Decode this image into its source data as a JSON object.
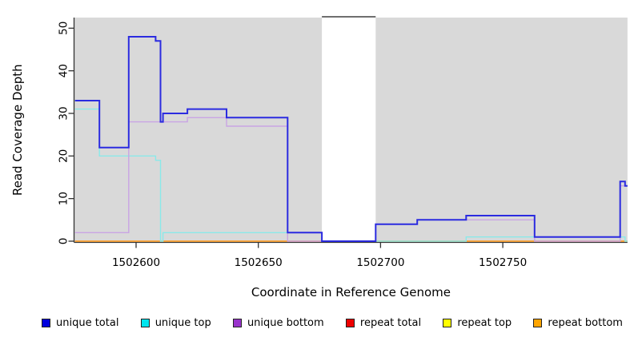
{
  "chart_data": {
    "type": "line",
    "subtype": "step-coverage-plot",
    "title": "",
    "xlabel": "Coordinate in Reference Genome",
    "ylabel": "Read Coverage Depth",
    "x_ticks": [
      1502600,
      1502650,
      1502700,
      1502750
    ],
    "y_ticks": [
      0,
      10,
      20,
      30,
      40,
      50
    ],
    "x_range": [
      1502575,
      1502801
    ],
    "y_range": [
      0,
      53
    ],
    "grid": "off",
    "panel_color": "#d9d9d9",
    "axis_color": "#333333",
    "gap_region": {
      "start": 1502676,
      "end": 1502698,
      "fill": "#ffffff",
      "top_bar_color": "#6e6e6e"
    },
    "legend_position": "bottom",
    "legend": [
      {
        "label": "unique total",
        "color": "#0000dd"
      },
      {
        "label": "unique top",
        "color": "#00e5ee"
      },
      {
        "label": "unique bottom",
        "color": "#9933cc"
      },
      {
        "label": "repeat total",
        "color": "#ee0000"
      },
      {
        "label": "repeat top",
        "color": "#ffff00"
      },
      {
        "label": "repeat bottom",
        "color": "#ffa500"
      }
    ],
    "series": [
      {
        "name": "repeat total",
        "line_color": "#e05555",
        "width": 1.2,
        "segments": [
          [
            1502575,
            1502801,
            0
          ]
        ]
      },
      {
        "name": "repeat top",
        "line_color": "#ffe95c",
        "width": 1.2,
        "segments": [
          [
            1502575,
            1502801,
            0
          ]
        ]
      },
      {
        "name": "repeat bottom",
        "line_color": "#ff9d26",
        "width": 1.4,
        "segments": [
          [
            1502575,
            1502801,
            0
          ]
        ]
      },
      {
        "name": "unique top",
        "line_color": "#8ae9e9",
        "width": 1.4,
        "segments": [
          [
            1502575,
            1502585,
            31
          ],
          [
            1502585,
            1502608,
            20
          ],
          [
            1502608,
            1502610,
            19
          ],
          [
            1502610,
            1502611,
            0
          ],
          [
            1502611,
            1502676,
            2
          ],
          [
            1502676,
            1502735,
            0
          ],
          [
            1502735,
            1502800,
            1
          ],
          [
            1502800,
            1502801,
            0
          ]
        ]
      },
      {
        "name": "unique bottom",
        "line_color": "#c9a4e4",
        "width": 1.4,
        "segments": [
          [
            1502575,
            1502597,
            2
          ],
          [
            1502597,
            1502621,
            28
          ],
          [
            1502621,
            1502637,
            29
          ],
          [
            1502637,
            1502662,
            27
          ],
          [
            1502662,
            1502698,
            0
          ],
          [
            1502698,
            1502715,
            4
          ],
          [
            1502715,
            1502763,
            5
          ],
          [
            1502763,
            1502798,
            0
          ],
          [
            1502798,
            1502801,
            13
          ]
        ]
      },
      {
        "name": "unique total",
        "line_color": "#2b2be0",
        "width": 2,
        "segments": [
          [
            1502575,
            1502585,
            33
          ],
          [
            1502585,
            1502597,
            22
          ],
          [
            1502597,
            1502608,
            48
          ],
          [
            1502608,
            1502610,
            47
          ],
          [
            1502610,
            1502611,
            28
          ],
          [
            1502611,
            1502621,
            30
          ],
          [
            1502621,
            1502637,
            31
          ],
          [
            1502637,
            1502662,
            29
          ],
          [
            1502662,
            1502676,
            2
          ],
          [
            1502676,
            1502698,
            0
          ],
          [
            1502698,
            1502715,
            4
          ],
          [
            1502715,
            1502735,
            5
          ],
          [
            1502735,
            1502763,
            6
          ],
          [
            1502763,
            1502798,
            1
          ],
          [
            1502798,
            1502800,
            14
          ],
          [
            1502800,
            1502801,
            13
          ]
        ]
      }
    ]
  }
}
